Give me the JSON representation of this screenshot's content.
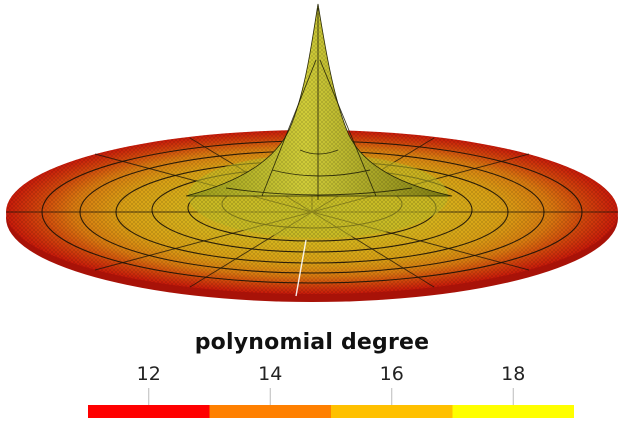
{
  "colorbar": {
    "title": "polynomial degree",
    "ticks": [
      {
        "value": 12,
        "label": "12"
      },
      {
        "value": 14,
        "label": "14"
      },
      {
        "value": 16,
        "label": "16"
      },
      {
        "value": 18,
        "label": "18"
      }
    ],
    "range": [
      11,
      19
    ],
    "segments": [
      {
        "from": 11,
        "to": 13,
        "color": "#ff0000"
      },
      {
        "from": 13,
        "to": 15,
        "color": "#ff8000"
      },
      {
        "from": 15,
        "to": 17,
        "color": "#ffc000"
      },
      {
        "from": 17,
        "to": 19,
        "color": "#ffff00"
      }
    ]
  },
  "mesh": {
    "description_colors": {
      "outer_ring": "#e02010",
      "middle_ring": "#e07810",
      "inner_ring": "#d8b018",
      "center_peak": "#c8c830"
    }
  }
}
